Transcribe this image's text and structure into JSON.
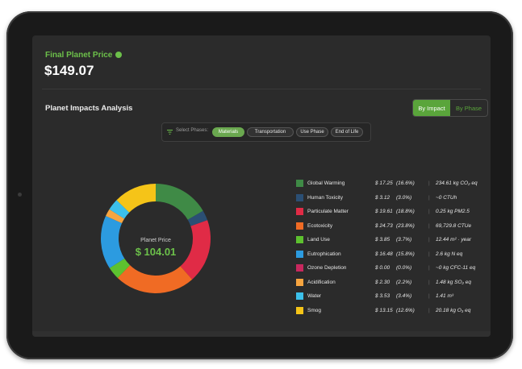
{
  "final_price": {
    "label": "Final Planet Price",
    "value": "$149.07"
  },
  "analysis": {
    "title": "Planet Impacts Analysis",
    "toggle": [
      "By Impact",
      "By Phase"
    ],
    "active_toggle": "By Impact"
  },
  "phases": {
    "label": "Select Phases:",
    "items": [
      "Materials",
      "Transportation",
      "Use Phase",
      "End of Life"
    ],
    "selected": "Materials"
  },
  "center": {
    "label": "Planet Price",
    "value": "$ 104.01"
  },
  "legend": [
    {
      "name": "Global Warming",
      "value": "$ 17.25",
      "pct": "(16.6%)",
      "unit": "234.61 kg CO₂ eq",
      "color": "#3f8a46"
    },
    {
      "name": "Human Toxicity",
      "value": "$ 3.12",
      "pct": "(3.0%)",
      "unit": "~0 CTUh",
      "color": "#2b4f74"
    },
    {
      "name": "Particulate Matter",
      "value": "$ 19.61",
      "pct": "(18.8%)",
      "unit": "0.25 kg PM2.5",
      "color": "#e02b46"
    },
    {
      "name": "Ecotoxicity",
      "value": "$ 24.73",
      "pct": "(23.8%)",
      "unit": "69,729.8 CTUe",
      "color": "#f06b24"
    },
    {
      "name": "Land Use",
      "value": "$ 3.85",
      "pct": "(3.7%)",
      "unit": "12.44 m² · year",
      "color": "#5dc12f"
    },
    {
      "name": "Eutrophication",
      "value": "$ 16.48",
      "pct": "(15.8%)",
      "unit": "2.6 kg N eq",
      "color": "#2c9be0"
    },
    {
      "name": "Ozone Depletion",
      "value": "$ 0.00",
      "pct": "(0.0%)",
      "unit": "~0 kg CFC-11 eq",
      "color": "#c8285e"
    },
    {
      "name": "Acidification",
      "value": "$ 2.30",
      "pct": "(2.2%)",
      "unit": "1.48 kg SO₂ eq",
      "color": "#f7a540"
    },
    {
      "name": "Water",
      "value": "$ 3.53",
      "pct": "(3.4%)",
      "unit": "1.41 m³",
      "color": "#3cc0ea"
    },
    {
      "name": "Smog",
      "value": "$ 13.15",
      "pct": "(12.6%)",
      "unit": "20.18 kg O₃ eq",
      "color": "#f5c418"
    }
  ]
}
